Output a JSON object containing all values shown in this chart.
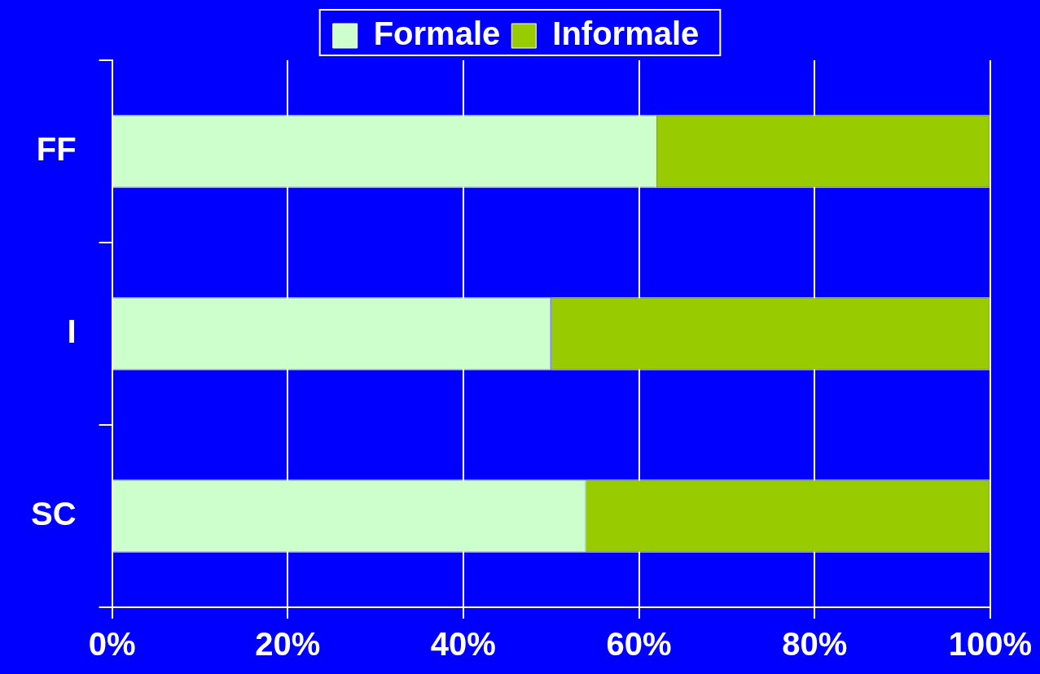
{
  "chart_data": {
    "type": "bar",
    "orientation": "horizontal",
    "stacked": true,
    "categories": [
      "FF",
      "I",
      "SC"
    ],
    "series": [
      {
        "name": "Formale",
        "color": "#ccffcc",
        "values": [
          62,
          50,
          54
        ]
      },
      {
        "name": "Informale",
        "color": "#99cc00",
        "values": [
          38,
          50,
          46
        ]
      }
    ],
    "xlim": [
      0,
      100
    ],
    "xticks": [
      {
        "value": 0,
        "label": "0%"
      },
      {
        "value": 20,
        "label": "20%"
      },
      {
        "value": 40,
        "label": "40%"
      },
      {
        "value": 60,
        "label": "60%"
      },
      {
        "value": 80,
        "label": "80%"
      },
      {
        "value": 100,
        "label": "100%"
      }
    ],
    "grid": "x",
    "legend": "top"
  }
}
